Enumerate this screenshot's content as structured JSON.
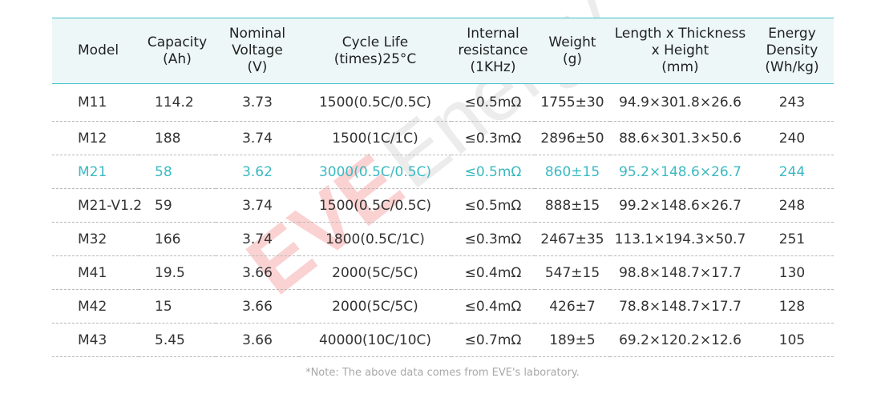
{
  "watermark": {
    "brand": "EVE",
    "text": "Energy",
    "brand_color": "#f26b6b",
    "text_color": "#c8c8c8"
  },
  "colors": {
    "accent": "#42bfc7",
    "header_bg": "#edf7f8",
    "highlight_text": "#3ab9c1"
  },
  "table": {
    "headers": {
      "model": [
        "Model"
      ],
      "capacity": [
        "Capacity",
        "(Ah)"
      ],
      "voltage": [
        "Nominal",
        "Voltage",
        "(V)"
      ],
      "cycle": [
        "Cycle Life",
        "(times)25°C"
      ],
      "resistance": [
        "Internal",
        "resistance",
        "(1KHz)"
      ],
      "weight": [
        "Weight",
        "(g)"
      ],
      "dimensions": [
        "Length x Thickness",
        "x Height",
        "(mm)"
      ],
      "density": [
        "Energy",
        "Density",
        "(Wh/kg)"
      ]
    },
    "rows": [
      {
        "model": "M11",
        "capacity": "114.2",
        "voltage": "3.73",
        "cycle": "1500(0.5C/0.5C)",
        "resistance": "≤0.5mΩ",
        "weight": "1755±30",
        "dimensions": "94.9×301.8×26.6",
        "density": "243"
      },
      {
        "model": "M12",
        "capacity": "188",
        "voltage": "3.74",
        "cycle": "1500(1C/1C)",
        "resistance": "≤0.3mΩ",
        "weight": "2896±50",
        "dimensions": "88.6×301.3×50.6",
        "density": "240"
      },
      {
        "model": "M21",
        "capacity": "58",
        "voltage": "3.62",
        "cycle": "3000(0.5C/0.5C)",
        "resistance": "≤0.5mΩ",
        "weight": "860±15",
        "dimensions": "95.2×148.6×26.7",
        "density": "244"
      },
      {
        "model": "M21-V1.2",
        "capacity": "59",
        "voltage": "3.74",
        "cycle": "1500(0.5C/0.5C)",
        "resistance": "≤0.5mΩ",
        "weight": "888±15",
        "dimensions": "99.2×148.6×26.7",
        "density": "248"
      },
      {
        "model": "M32",
        "capacity": "166",
        "voltage": "3.74",
        "cycle": "1800(0.5C/1C)",
        "resistance": "≤0.3mΩ",
        "weight": "2467±35",
        "dimensions": "113.1×194.3×50.7",
        "density": "251"
      },
      {
        "model": "M41",
        "capacity": "19.5",
        "voltage": "3.66",
        "cycle": "2000(5C/5C)",
        "resistance": "≤0.4mΩ",
        "weight": "547±15",
        "dimensions": "98.8×148.7×17.7",
        "density": "130"
      },
      {
        "model": "M42",
        "capacity": "15",
        "voltage": "3.66",
        "cycle": "2000(5C/5C)",
        "resistance": "≤0.4mΩ",
        "weight": "426±7",
        "dimensions": "78.8×148.7×17.7",
        "density": "128"
      },
      {
        "model": "M43",
        "capacity": "5.45",
        "voltage": "3.66",
        "cycle": "40000(10C/10C)",
        "resistance": "≤0.7mΩ",
        "weight": "189±5",
        "dimensions": "69.2×120.2×12.6",
        "density": "105"
      }
    ],
    "highlighted_row": 2
  },
  "note": "*Note: The above data comes from EVE's laboratory."
}
